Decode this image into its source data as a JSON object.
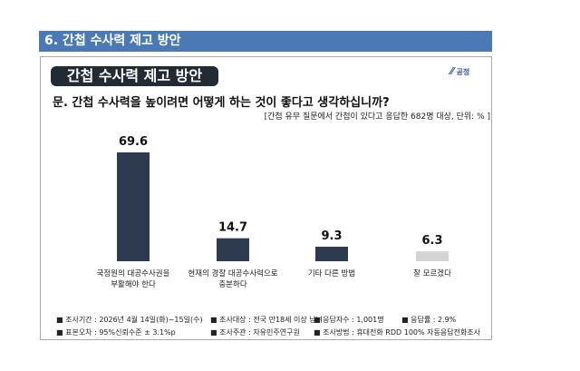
{
  "header": {
    "title": "6. 간첩 수사력 제고 방안"
  },
  "pill_title": "간첩 수사력 제고 방안",
  "logo_text": "여론조사 공정",
  "question": "문. 간첩 수사력을 높이려면 어떻게 하는 것이 좋다고 생각하십니까?",
  "note": "[간첩 유무 질문에서 간첩이 있다고 응답한 682명 대상, 단위: % ]",
  "chart_data": {
    "type": "bar",
    "categories": [
      [
        "국정원의 대공수사권을",
        "부활해야 한다"
      ],
      [
        "현재의 경찰 대공수사력으로",
        "충분하다"
      ],
      [
        "기타 다른 방법"
      ],
      [
        "잘 모르겠다"
      ]
    ],
    "values": [
      69.6,
      14.7,
      9.3,
      6.3
    ],
    "value_labels": [
      "69.6",
      "14.7",
      "9.3",
      "6.3"
    ],
    "colors": [
      "#2e3a4f",
      "#2e3a4f",
      "#2e3a4f",
      "#d4d4d4"
    ],
    "unit": "%",
    "grid": false
  },
  "footer": [
    "■ 조사기간 : 2026년 4월 14일(화)~15일(수)",
    "■ 조사대상 : 전국 만18세 이상 남녀",
    "■ 응답자수 : 1,001명",
    "■ 응답률 : 2.9%",
    "■ 표본오차 : 95%신뢰수준 ± 3.1%p",
    "■ 조사주관 : 자유민주연구원",
    "■ 조사방법 : 휴대전화 RDD 100% 자동응답전화조사"
  ]
}
